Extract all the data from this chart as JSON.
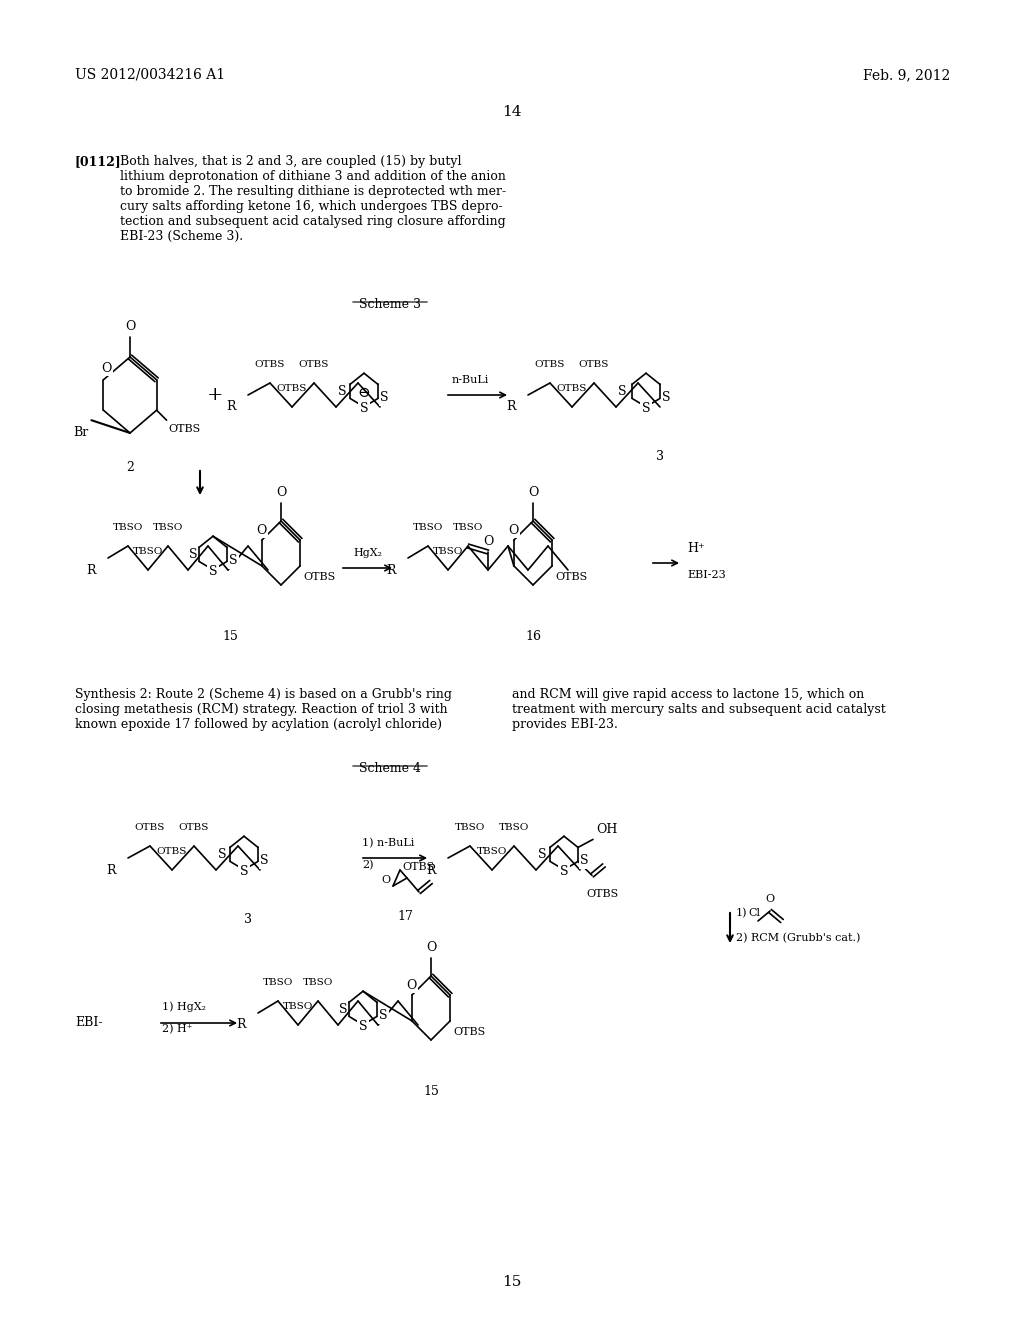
{
  "bg_color": "#ffffff",
  "header_left": "US 2012/0034216 A1",
  "header_right": "Feb. 9, 2012",
  "page_number": "14",
  "paragraph_tag": "[0112]",
  "paragraph_text": "Both halves, that is 2 and 3, are coupled (15) by butyl\nlithium deprotonation of dithiane 3 and addition of the anion\nto bromide 2. The resulting dithiane is deprotected wth mer-\ncury salts affording ketone 16, which undergoes TBS depro-\ntection and subsequent acid catalysed ring closure affording\nEBI-23 (Scheme 3).",
  "scheme3_label": "Scheme 3",
  "scheme4_label": "Scheme 4",
  "synthesis2_text": "Synthesis 2: Route 2 (Scheme 4) is based on a Grubb's ring\nclosing metathesis (RCM) strategy. Reaction of triol 3 with\nknown epoxide 17 followed by acylation (acrolyl chloride)",
  "synthesis2_text2": "and RCM will give rapid access to lactone 15, which on\ntreatment with mercury salts and subsequent acid catalyst\nprovides EBI-23.",
  "font_size_header": 10,
  "font_size_body": 9,
  "font_size_scheme": 9,
  "font_size_label": 8,
  "bottom_page_number": "15"
}
